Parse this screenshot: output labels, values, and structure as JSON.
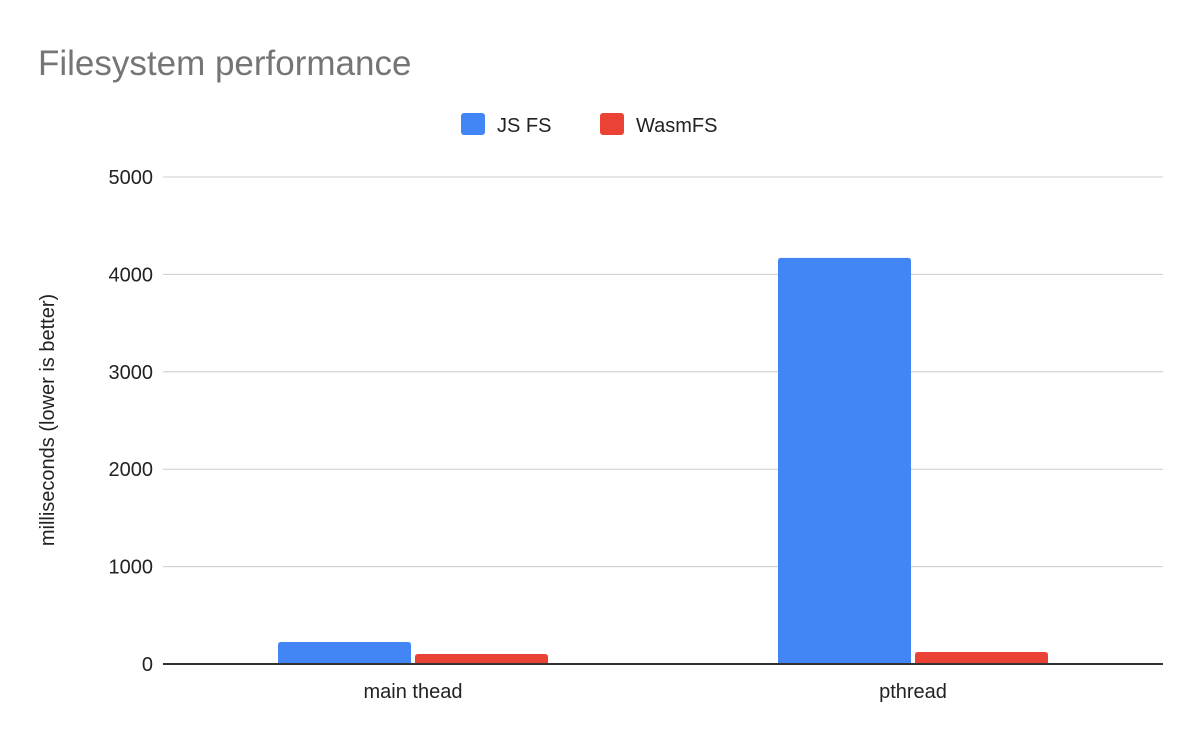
{
  "chart_data": {
    "type": "bar",
    "title": "Filesystem performance",
    "xlabel": "",
    "ylabel": "milliseconds (lower is better)",
    "categories": [
      "main thead",
      "pthread"
    ],
    "series": [
      {
        "name": "JS FS",
        "color": "#4285f4",
        "values": [
          226,
          4170
        ]
      },
      {
        "name": "WasmFS",
        "color": "#ea4335",
        "values": [
          103,
          123
        ]
      }
    ],
    "ylim": [
      0,
      5000
    ],
    "yticks": [
      "0",
      "1000",
      "2000",
      "3000",
      "4000",
      "5000"
    ],
    "grid": true,
    "legend": "top-center"
  }
}
